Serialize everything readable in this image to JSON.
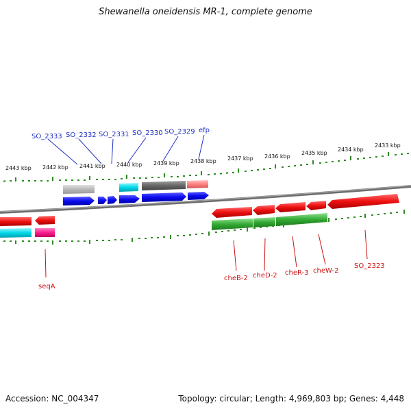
{
  "title": "Shewanella oneidensis MR-1, complete genome",
  "accession": "Accession: NC_004347",
  "topology": "Topology: circular; Length: 4,969,803 bp; Genes: 4,448",
  "scale_labels": [
    "2443 kbp",
    "2442 kbp",
    "2441 kbp",
    "2440 kbp",
    "2439 kbp",
    "2438 kbp",
    "2437 kbp",
    "2436 kbp",
    "2435 kbp",
    "2434 kbp",
    "2433 kbp"
  ],
  "colors": {
    "backbone": "#808080",
    "tick": "#2e8b22",
    "label_top": "#1f2fbf",
    "label_bottom": "#cc1111",
    "forward_cds": "#0a0aee",
    "reverse_cds": "#ee1111",
    "rna_cyan": "#00d8e8",
    "green_track": "#33aa33",
    "gray_track": "#666666",
    "pink_track": "#ff8080",
    "magenta_track": "#ff2090"
  },
  "labels_top": [
    "SO_2333",
    "SO_2332",
    "SO_2331",
    "SO_2330",
    "SO_2329",
    "efp"
  ],
  "labels_bottom": [
    "seqA",
    "cheB-2",
    "cheD-2",
    "cheR-3",
    "cheW-2",
    "SO_2323"
  ]
}
